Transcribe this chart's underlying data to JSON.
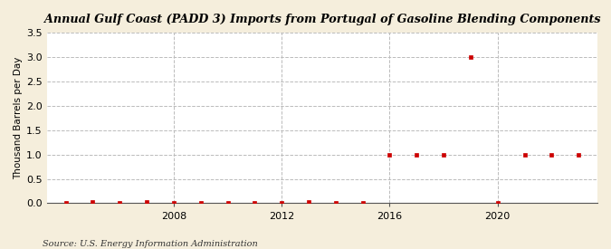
{
  "title": "Annual Gulf Coast (PADD 3) Imports from Portugal of Gasoline Blending Components",
  "ylabel": "Thousand Barrels per Day",
  "source": "Source: U.S. Energy Information Administration",
  "background_color": "#f5eedc",
  "plot_background_color": "#ffffff",
  "marker_color": "#cc0000",
  "marker": "s",
  "marker_size": 3.5,
  "ylim": [
    0,
    3.5
  ],
  "yticks": [
    0.0,
    0.5,
    1.0,
    1.5,
    2.0,
    2.5,
    3.0,
    3.5
  ],
  "xlim": [
    2003.3,
    2023.7
  ],
  "xtick_positions": [
    2008,
    2012,
    2016,
    2020
  ],
  "grid_color": "#bbbbbb",
  "grid_style": "--",
  "years": [
    2004,
    2005,
    2006,
    2007,
    2008,
    2009,
    2010,
    2011,
    2012,
    2013,
    2014,
    2015,
    2016,
    2017,
    2018,
    2019,
    2020,
    2021,
    2022,
    2023
  ],
  "values": [
    0.0,
    0.02,
    0.0,
    0.02,
    0.01,
    0.0,
    0.0,
    0.0,
    0.0,
    0.02,
    0.0,
    0.0,
    1.0,
    1.0,
    1.0,
    3.0,
    0.01,
    1.0,
    1.0,
    1.0
  ]
}
